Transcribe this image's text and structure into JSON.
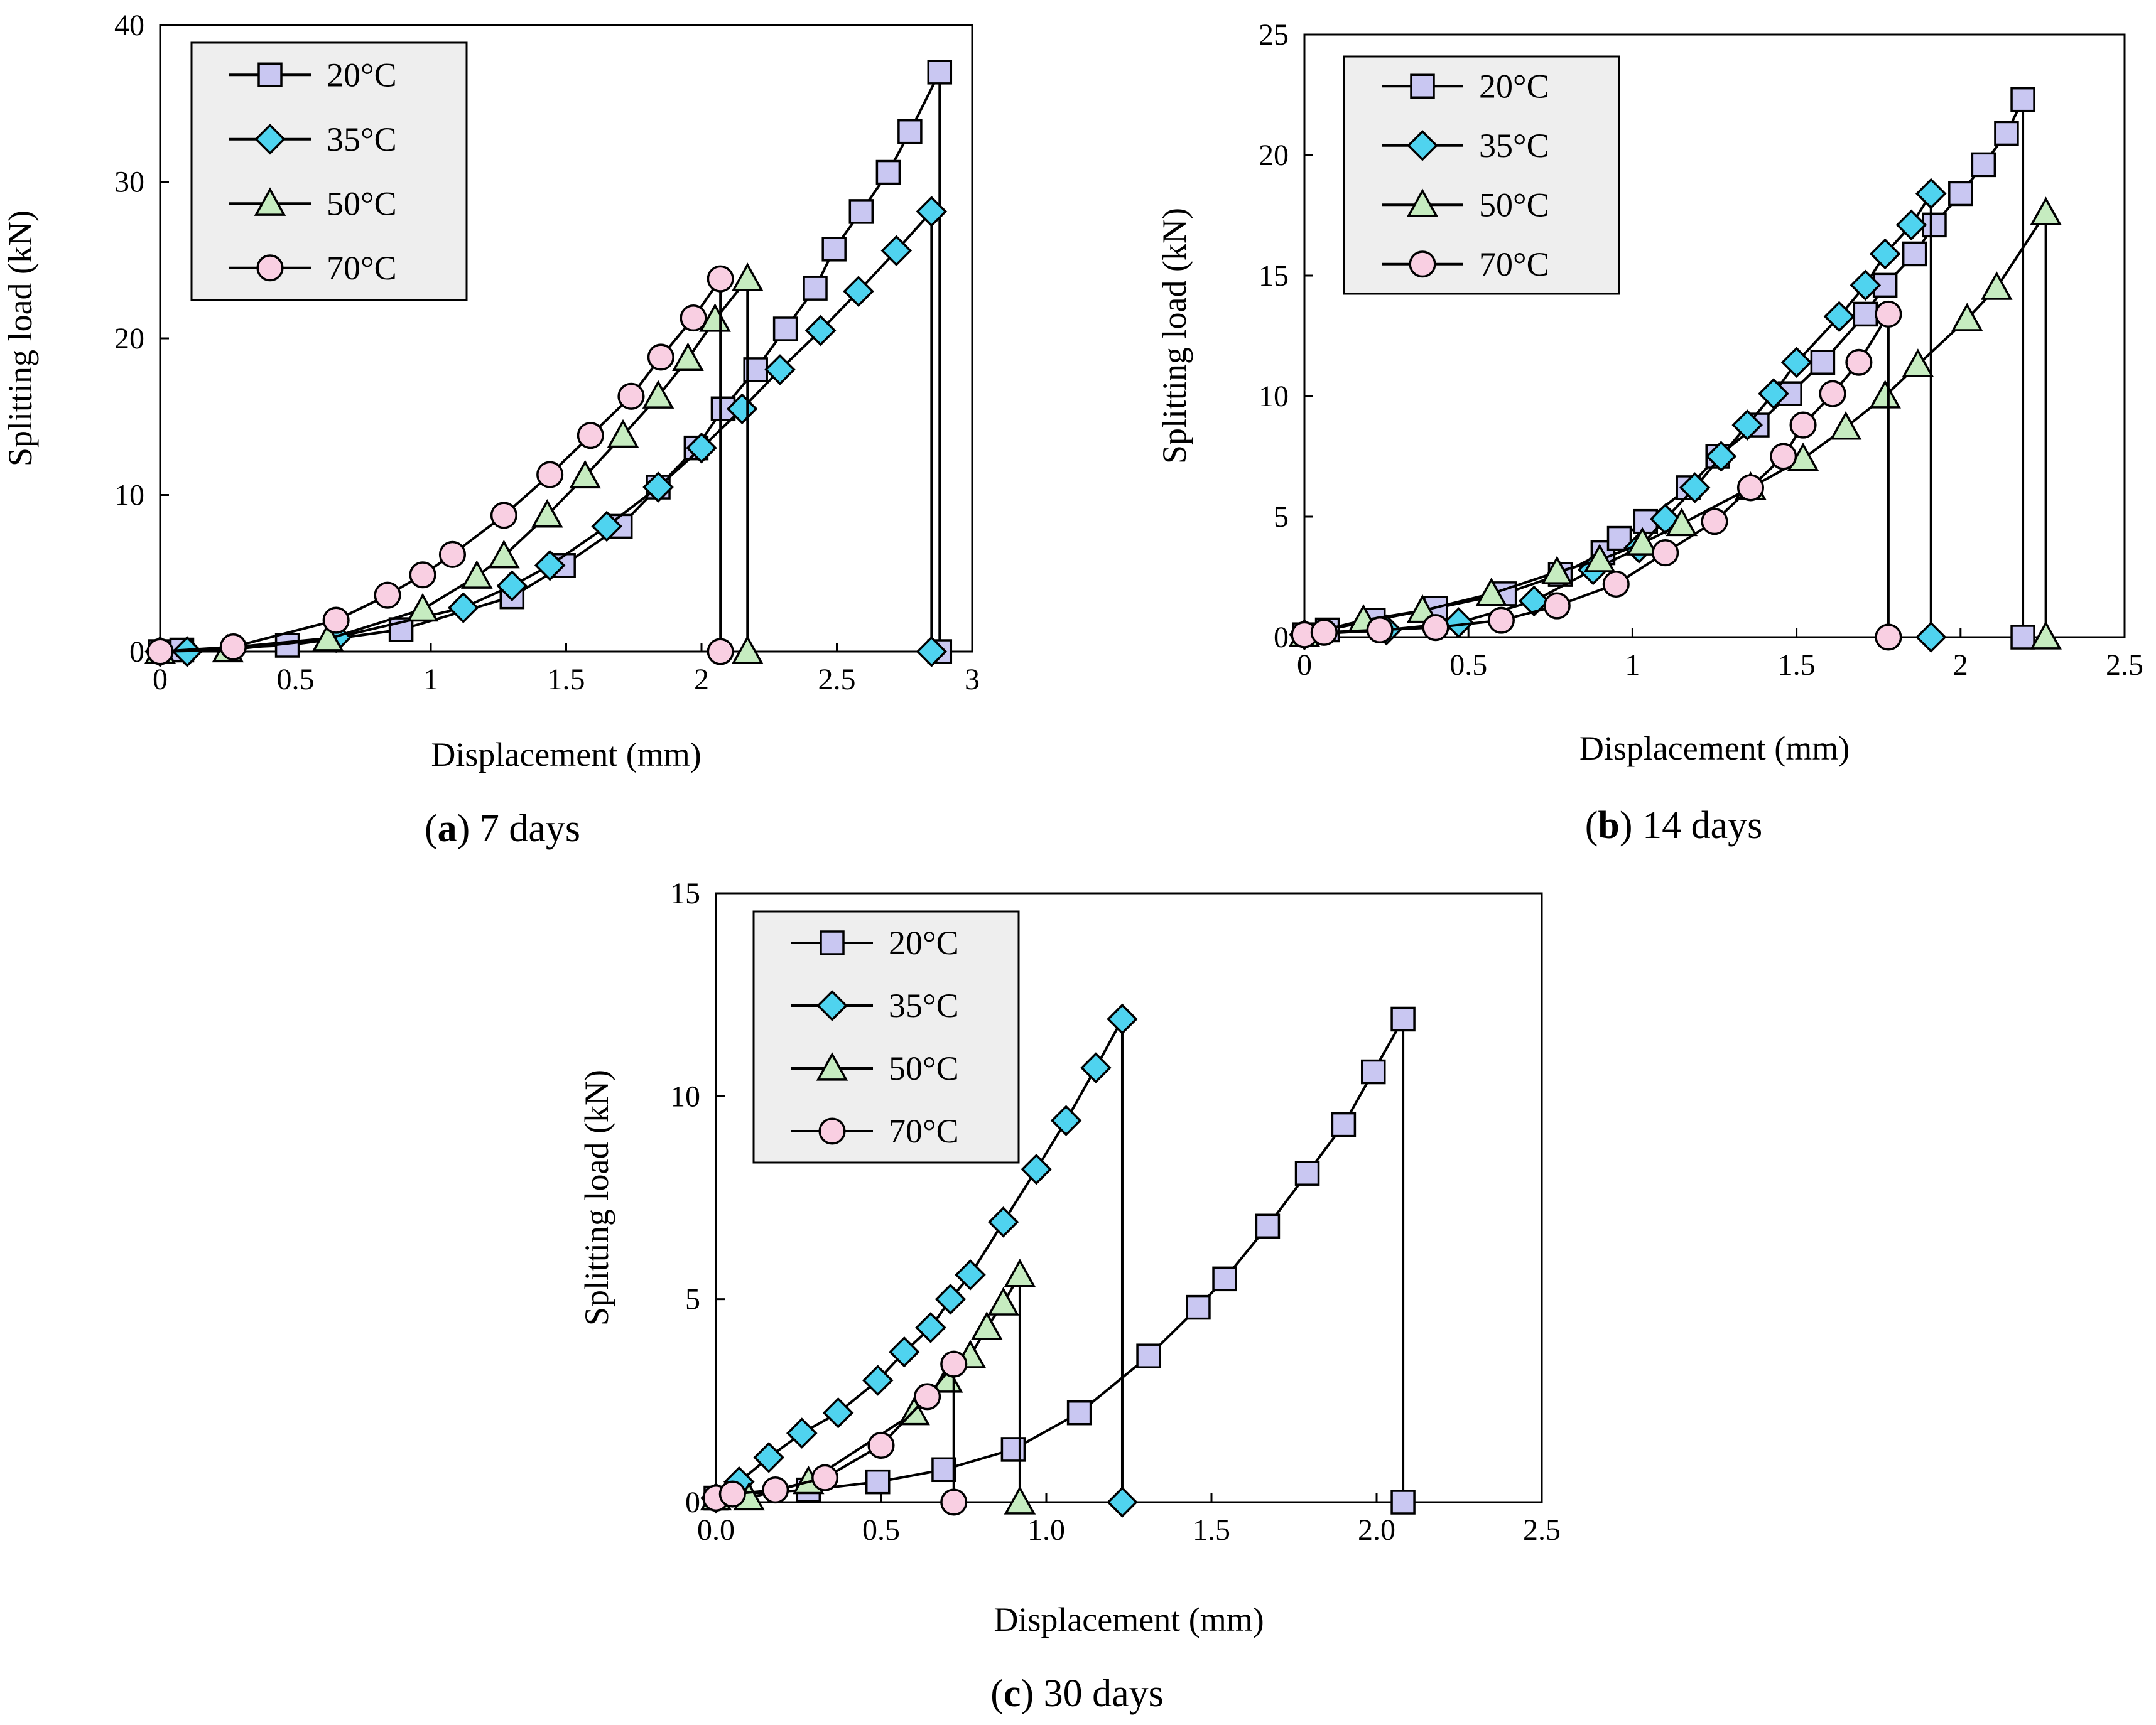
{
  "colors": {
    "square": "#c9c7f2",
    "diamond": "#4fd3ef",
    "triangle": "#c6ecc0",
    "circle": "#f9cfe2",
    "legend_bg": "#eeeeee",
    "line": "#000000"
  },
  "chart_data": [
    {
      "type": "line",
      "panel": "a",
      "caption_letter": "a",
      "caption_text": " 7 days",
      "caption_open": "(",
      "caption_close": ")",
      "xlabel": "Displacement (mm)",
      "ylabel": "Splitting load (kN)",
      "xlim": [
        0,
        3
      ],
      "ylim": [
        0,
        40
      ],
      "xticks": [
        0,
        0.5,
        1,
        1.5,
        2,
        2.5,
        3
      ],
      "xtick_labels": [
        "0",
        "0.5",
        "1",
        "1.5",
        "2",
        "2.5",
        "3"
      ],
      "yticks": [
        0,
        10,
        20,
        30,
        40
      ],
      "ytick_labels": [
        "0",
        "10",
        "20",
        "30",
        "40"
      ],
      "legend_position": "top-left",
      "series": [
        {
          "name": "20°C",
          "marker": "square",
          "points": [
            [
              0,
              0
            ],
            [
              0.08,
              0.1
            ],
            [
              0.47,
              0.4
            ],
            [
              0.89,
              1.4
            ],
            [
              1.3,
              3.5
            ],
            [
              1.49,
              5.5
            ],
            [
              1.7,
              8
            ],
            [
              1.84,
              10.5
            ],
            [
              1.98,
              13
            ],
            [
              2.08,
              15.5
            ],
            [
              2.2,
              18
            ],
            [
              2.31,
              20.6
            ],
            [
              2.42,
              23.2
            ],
            [
              2.49,
              25.7
            ],
            [
              2.59,
              28.1
            ],
            [
              2.69,
              30.6
            ],
            [
              2.77,
              33.2
            ],
            [
              2.88,
              37
            ],
            [
              2.88,
              0
            ]
          ]
        },
        {
          "name": "35°C",
          "marker": "diamond",
          "points": [
            [
              0,
              0
            ],
            [
              0.1,
              0
            ],
            [
              0.65,
              0.9
            ],
            [
              1.12,
              2.8
            ],
            [
              1.3,
              4.2
            ],
            [
              1.44,
              5.5
            ],
            [
              1.65,
              8
            ],
            [
              1.84,
              10.5
            ],
            [
              2,
              13
            ],
            [
              2.15,
              15.5
            ],
            [
              2.29,
              18
            ],
            [
              2.44,
              20.5
            ],
            [
              2.58,
              23
            ],
            [
              2.72,
              25.6
            ],
            [
              2.85,
              28.1
            ],
            [
              2.85,
              0
            ]
          ]
        },
        {
          "name": "50°C",
          "marker": "triangle",
          "points": [
            [
              0,
              0
            ],
            [
              0.25,
              0.1
            ],
            [
              0.62,
              0.8
            ],
            [
              0.97,
              2.7
            ],
            [
              1.17,
              4.8
            ],
            [
              1.27,
              6.1
            ],
            [
              1.43,
              8.7
            ],
            [
              1.57,
              11.2
            ],
            [
              1.71,
              13.8
            ],
            [
              1.84,
              16.3
            ],
            [
              1.95,
              18.7
            ],
            [
              2.05,
              21.2
            ],
            [
              2.17,
              23.8
            ],
            [
              2.17,
              0
            ]
          ]
        },
        {
          "name": "70°C",
          "marker": "circle",
          "points": [
            [
              0,
              0
            ],
            [
              0.27,
              0.3
            ],
            [
              0.65,
              2
            ],
            [
              0.84,
              3.6
            ],
            [
              0.97,
              4.9
            ],
            [
              1.08,
              6.2
            ],
            [
              1.27,
              8.7
            ],
            [
              1.44,
              11.3
            ],
            [
              1.59,
              13.8
            ],
            [
              1.74,
              16.3
            ],
            [
              1.85,
              18.8
            ],
            [
              1.97,
              21.3
            ],
            [
              2.07,
              23.8
            ],
            [
              2.07,
              0
            ]
          ]
        }
      ]
    },
    {
      "type": "line",
      "panel": "b",
      "caption_letter": "b",
      "caption_text": " 14 days",
      "caption_open": "(",
      "caption_close": ")",
      "xlabel": "Displacement (mm)",
      "ylabel": "Splitting load (kN)",
      "xlim": [
        0,
        2.5
      ],
      "ylim": [
        0,
        25
      ],
      "xticks": [
        0,
        0.5,
        1,
        1.5,
        2,
        2.5
      ],
      "xtick_labels": [
        "0",
        "0.5",
        "1",
        "1.5",
        "2",
        "2.5"
      ],
      "yticks": [
        0,
        5,
        10,
        15,
        20,
        25
      ],
      "ytick_labels": [
        "0",
        "5",
        "10",
        "15",
        "20",
        "25"
      ],
      "legend_position": "top-left",
      "series": [
        {
          "name": "20°C",
          "marker": "square",
          "points": [
            [
              0,
              0.1
            ],
            [
              0.07,
              0.3
            ],
            [
              0.21,
              0.7
            ],
            [
              0.4,
              1.2
            ],
            [
              0.61,
              1.8
            ],
            [
              0.78,
              2.6
            ],
            [
              0.91,
              3.5
            ],
            [
              0.96,
              4.1
            ],
            [
              1.04,
              4.8
            ],
            [
              1.17,
              6.2
            ],
            [
              1.26,
              7.5
            ],
            [
              1.38,
              8.8
            ],
            [
              1.48,
              10.1
            ],
            [
              1.58,
              11.4
            ],
            [
              1.71,
              13.4
            ],
            [
              1.77,
              14.6
            ],
            [
              1.86,
              15.9
            ],
            [
              1.92,
              17.1
            ],
            [
              2,
              18.4
            ],
            [
              2.07,
              19.6
            ],
            [
              2.14,
              20.9
            ],
            [
              2.19,
              22.3
            ],
            [
              2.19,
              0
            ]
          ]
        },
        {
          "name": "35°C",
          "marker": "diamond",
          "points": [
            [
              0,
              0.1
            ],
            [
              0.25,
              0.3
            ],
            [
              0.47,
              0.6
            ],
            [
              0.7,
              1.5
            ],
            [
              0.88,
              2.8
            ],
            [
              1.02,
              3.7
            ],
            [
              1.1,
              4.9
            ],
            [
              1.19,
              6.2
            ],
            [
              1.27,
              7.5
            ],
            [
              1.35,
              8.8
            ],
            [
              1.43,
              10.1
            ],
            [
              1.5,
              11.4
            ],
            [
              1.63,
              13.3
            ],
            [
              1.71,
              14.6
            ],
            [
              1.77,
              15.9
            ],
            [
              1.85,
              17.1
            ],
            [
              1.91,
              18.4
            ],
            [
              1.91,
              0
            ]
          ]
        },
        {
          "name": "50°C",
          "marker": "triangle",
          "points": [
            [
              0,
              0.1
            ],
            [
              0.18,
              0.7
            ],
            [
              0.36,
              1.1
            ],
            [
              0.57,
              1.8
            ],
            [
              0.77,
              2.7
            ],
            [
              0.9,
              3.2
            ],
            [
              1.03,
              3.9
            ],
            [
              1.15,
              4.7
            ],
            [
              1.36,
              6.2
            ],
            [
              1.52,
              7.4
            ],
            [
              1.65,
              8.7
            ],
            [
              1.77,
              10
            ],
            [
              1.87,
              11.3
            ],
            [
              2.02,
              13.2
            ],
            [
              2.11,
              14.5
            ],
            [
              2.26,
              17.6
            ],
            [
              2.26,
              0
            ]
          ]
        },
        {
          "name": "70°C",
          "marker": "circle",
          "points": [
            [
              0,
              0.1
            ],
            [
              0.06,
              0.2
            ],
            [
              0.23,
              0.3
            ],
            [
              0.4,
              0.4
            ],
            [
              0.6,
              0.7
            ],
            [
              0.77,
              1.3
            ],
            [
              0.95,
              2.2
            ],
            [
              1.1,
              3.5
            ],
            [
              1.25,
              4.8
            ],
            [
              1.36,
              6.2
            ],
            [
              1.46,
              7.5
            ],
            [
              1.52,
              8.8
            ],
            [
              1.61,
              10.1
            ],
            [
              1.69,
              11.4
            ],
            [
              1.78,
              13.4
            ],
            [
              1.78,
              0
            ]
          ]
        }
      ]
    },
    {
      "type": "line",
      "panel": "c",
      "caption_letter": "c",
      "caption_text": " 30 days",
      "caption_open": "(",
      "caption_close": ")",
      "xlabel": "Displacement (mm)",
      "ylabel": "Splitting load (kN)",
      "xlim": [
        0,
        2.5
      ],
      "ylim": [
        0,
        15
      ],
      "xticks": [
        0,
        0.5,
        1,
        1.5,
        2,
        2.5
      ],
      "xtick_labels": [
        "0.0",
        "0.5",
        "1.0",
        "1.5",
        "2.0",
        "2.5"
      ],
      "yticks": [
        0,
        5,
        10,
        15
      ],
      "ytick_labels": [
        "0",
        "5",
        "10",
        "15"
      ],
      "legend_position": "top-left",
      "series": [
        {
          "name": "20°C",
          "marker": "square",
          "points": [
            [
              0,
              0.1
            ],
            [
              0.07,
              0.2
            ],
            [
              0.28,
              0.3
            ],
            [
              0.49,
              0.5
            ],
            [
              0.69,
              0.8
            ],
            [
              0.9,
              1.3
            ],
            [
              1.1,
              2.2
            ],
            [
              1.31,
              3.6
            ],
            [
              1.46,
              4.8
            ],
            [
              1.54,
              5.5
            ],
            [
              1.67,
              6.8
            ],
            [
              1.79,
              8.1
            ],
            [
              1.9,
              9.3
            ],
            [
              1.99,
              10.6
            ],
            [
              2.08,
              11.9
            ],
            [
              2.08,
              0
            ]
          ]
        },
        {
          "name": "35°C",
          "marker": "diamond",
          "points": [
            [
              0,
              0.1
            ],
            [
              0.07,
              0.5
            ],
            [
              0.16,
              1.1
            ],
            [
              0.26,
              1.7
            ],
            [
              0.37,
              2.2
            ],
            [
              0.49,
              3
            ],
            [
              0.57,
              3.7
            ],
            [
              0.65,
              4.3
            ],
            [
              0.71,
              5
            ],
            [
              0.77,
              5.6
            ],
            [
              0.87,
              6.9
            ],
            [
              0.97,
              8.2
            ],
            [
              1.06,
              9.4
            ],
            [
              1.15,
              10.7
            ],
            [
              1.23,
              11.9
            ],
            [
              1.23,
              0
            ]
          ]
        },
        {
          "name": "50°C",
          "marker": "triangle",
          "points": [
            [
              0,
              0.1
            ],
            [
              0.1,
              0.1
            ],
            [
              0.28,
              0.5
            ],
            [
              0.6,
              2.2
            ],
            [
              0.7,
              3
            ],
            [
              0.77,
              3.6
            ],
            [
              0.82,
              4.3
            ],
            [
              0.87,
              4.9
            ],
            [
              0.92,
              5.6
            ],
            [
              0.92,
              0
            ]
          ]
        },
        {
          "name": "70°C",
          "marker": "circle",
          "points": [
            [
              0,
              0.1
            ],
            [
              0.05,
              0.2
            ],
            [
              0.18,
              0.3
            ],
            [
              0.33,
              0.6
            ],
            [
              0.5,
              1.4
            ],
            [
              0.64,
              2.6
            ],
            [
              0.72,
              3.4
            ],
            [
              0.72,
              0
            ]
          ]
        }
      ]
    }
  ]
}
